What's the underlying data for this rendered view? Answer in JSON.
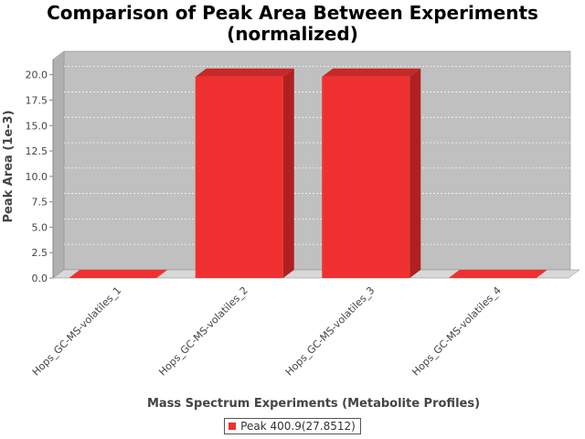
{
  "chart_data": {
    "type": "bar",
    "title_lines": [
      "Comparison of Peak Area Between Experiments",
      "(normalized)"
    ],
    "xlabel": "Mass Spectrum Experiments (Metabolite Profiles)",
    "ylabel": "Peak Area (1e-3)",
    "categories": [
      "Hops_GC-MS-volatiles_1",
      "Hops_GC-MS-volatiles_2",
      "Hops_GC-MS-volatiles_3",
      "Hops_GC-MS-volatiles_4"
    ],
    "series": [
      {
        "name": "Peak 400.9(27.8512)",
        "values": [
          0.0,
          19.8,
          19.8,
          0.0
        ]
      }
    ],
    "ylim": [
      0,
      21.5
    ],
    "yticks": [
      0.0,
      2.5,
      5.0,
      7.5,
      10.0,
      12.5,
      15.0,
      17.5,
      20.0
    ],
    "ytick_labels": [
      "0.0",
      "2.5",
      "5.0",
      "7.5",
      "10.0",
      "12.5",
      "15.0",
      "17.5",
      "20.0"
    ],
    "grid": true,
    "legend_position": "bottom",
    "colors": {
      "bar": "#f03030",
      "bar_side": "#b02020",
      "bar_top": "#c82828",
      "plot_bg": "#c0c0c0",
      "floor": "#d8d8d8"
    }
  }
}
